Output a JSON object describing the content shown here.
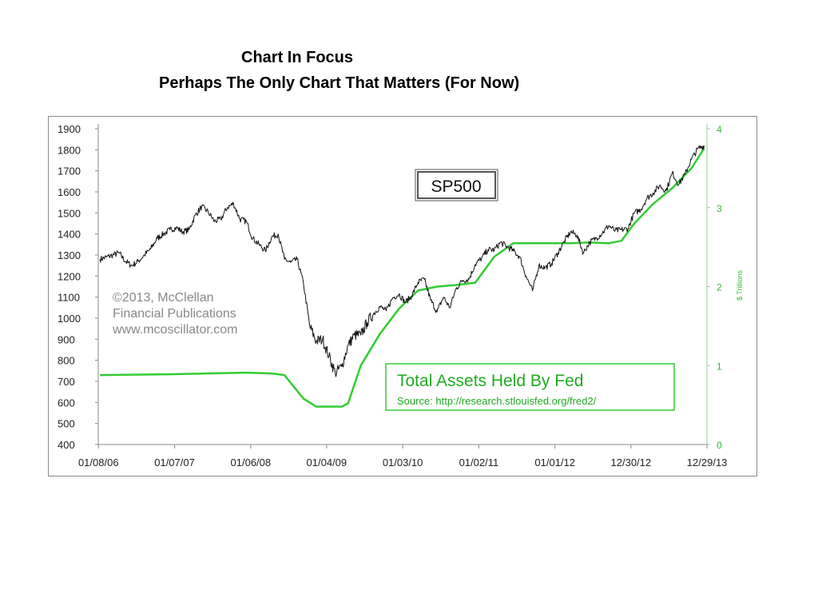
{
  "titles": {
    "line1": "Chart In Focus",
    "line2": "Perhaps The Only Chart That Matters (For Now)"
  },
  "chart_data": {
    "type": "line",
    "x_tick_labels": [
      "01/08/06",
      "01/07/07",
      "01/06/08",
      "01/04/09",
      "01/03/10",
      "01/02/11",
      "01/01/12",
      "12/30/12",
      "12/29/13"
    ],
    "y_left_ticks": [
      1900,
      1800,
      1700,
      1600,
      1500,
      1400,
      1300,
      1200,
      1100,
      1000,
      900,
      800,
      700,
      600,
      500,
      400
    ],
    "y_left_range": [
      400,
      1900
    ],
    "y_right_ticks": [
      4,
      3,
      2,
      1,
      0
    ],
    "y_right_range": [
      0,
      4
    ],
    "y_right_label": "$ Trillions",
    "grid": false,
    "annotations": {
      "sp500_box": "SP500",
      "copyright_lines": [
        "©2013, McClellan",
        "Financial Publications",
        "www.mcoscillator.com"
      ],
      "fed_box_title": "Total Assets Held By Fed",
      "fed_box_source": "Source: http://research.stlouisfed.org/fred2/"
    },
    "colors": {
      "sp500": "#111111",
      "fed": "#33cc33",
      "right_axis": "#33bb33",
      "axis": "#888888"
    },
    "series": [
      {
        "name": "SP500",
        "axis": "left",
        "x": [
          "01/2006",
          "02/2006",
          "03/2006",
          "04/2006",
          "05/2006",
          "06/2006",
          "07/2006",
          "08/2006",
          "09/2006",
          "10/2006",
          "11/2006",
          "12/2006",
          "01/2007",
          "02/2007",
          "03/2007",
          "04/2007",
          "05/2007",
          "06/2007",
          "07/2007",
          "08/2007",
          "09/2007",
          "10/2007",
          "11/2007",
          "12/2007",
          "01/2008",
          "02/2008",
          "03/2008",
          "04/2008",
          "05/2008",
          "06/2008",
          "07/2008",
          "08/2008",
          "09/2008",
          "10/2008",
          "11/2008",
          "12/2008",
          "01/2009",
          "02/2009",
          "03/2009",
          "04/2009",
          "05/2009",
          "06/2009",
          "07/2009",
          "08/2009",
          "09/2009",
          "10/2009",
          "11/2009",
          "12/2009",
          "01/2010",
          "02/2010",
          "03/2010",
          "04/2010",
          "05/2010",
          "06/2010",
          "07/2010",
          "08/2010",
          "09/2010",
          "10/2010",
          "11/2010",
          "12/2010",
          "01/2011",
          "02/2011",
          "03/2011",
          "04/2011",
          "05/2011",
          "06/2011",
          "07/2011",
          "08/2011",
          "09/2011",
          "10/2011",
          "11/2011",
          "12/2011",
          "01/2012",
          "02/2012",
          "03/2012",
          "04/2012",
          "05/2012",
          "06/2012",
          "07/2012",
          "08/2012",
          "09/2012",
          "10/2012",
          "11/2012",
          "12/2012",
          "01/2013",
          "02/2013",
          "03/2013",
          "04/2013",
          "05/2013",
          "06/2013",
          "07/2013",
          "08/2013",
          "09/2013",
          "10/2013",
          "11/2013",
          "12/2013"
        ],
        "values": [
          1280,
          1290,
          1300,
          1310,
          1270,
          1250,
          1270,
          1300,
          1330,
          1380,
          1400,
          1420,
          1430,
          1410,
          1420,
          1490,
          1530,
          1505,
          1460,
          1470,
          1525,
          1545,
          1470,
          1460,
          1380,
          1350,
          1320,
          1385,
          1400,
          1280,
          1265,
          1280,
          1165,
          960,
          890,
          900,
          820,
          740,
          770,
          870,
          920,
          920,
          980,
          1020,
          1055,
          1035,
          1095,
          1115,
          1075,
          1105,
          1170,
          1185,
          1085,
          1030,
          1100,
          1050,
          1140,
          1180,
          1185,
          1255,
          1285,
          1325,
          1325,
          1360,
          1340,
          1320,
          1290,
          1200,
          1130,
          1250,
          1240,
          1260,
          1310,
          1365,
          1410,
          1395,
          1310,
          1360,
          1380,
          1405,
          1440,
          1415,
          1420,
          1425,
          1500,
          1515,
          1570,
          1595,
          1630,
          1605,
          1690,
          1635,
          1685,
          1755,
          1805,
          1820
        ]
      },
      {
        "name": "Total Assets Held By Fed",
        "axis": "right",
        "x": [
          "01/2006",
          "12/2006",
          "12/2007",
          "04/2008",
          "06/2008",
          "09/2008",
          "11/2008",
          "03/2009",
          "04/2009",
          "06/2009",
          "09/2009",
          "12/2009",
          "03/2010",
          "06/2010",
          "09/2010",
          "12/2010",
          "03/2011",
          "06/2011",
          "09/2011",
          "12/2011",
          "03/2012",
          "06/2012",
          "09/2012",
          "11/2012",
          "01/2013",
          "04/2013",
          "07/2013",
          "10/2013",
          "12/2013"
        ],
        "values": [
          0.88,
          0.89,
          0.91,
          0.9,
          0.88,
          0.58,
          0.48,
          0.48,
          0.52,
          1.0,
          1.4,
          1.72,
          1.95,
          2.0,
          2.02,
          2.05,
          2.38,
          2.55,
          2.55,
          2.55,
          2.55,
          2.56,
          2.55,
          2.58,
          2.8,
          3.05,
          3.25,
          3.5,
          3.75
        ]
      }
    ]
  }
}
